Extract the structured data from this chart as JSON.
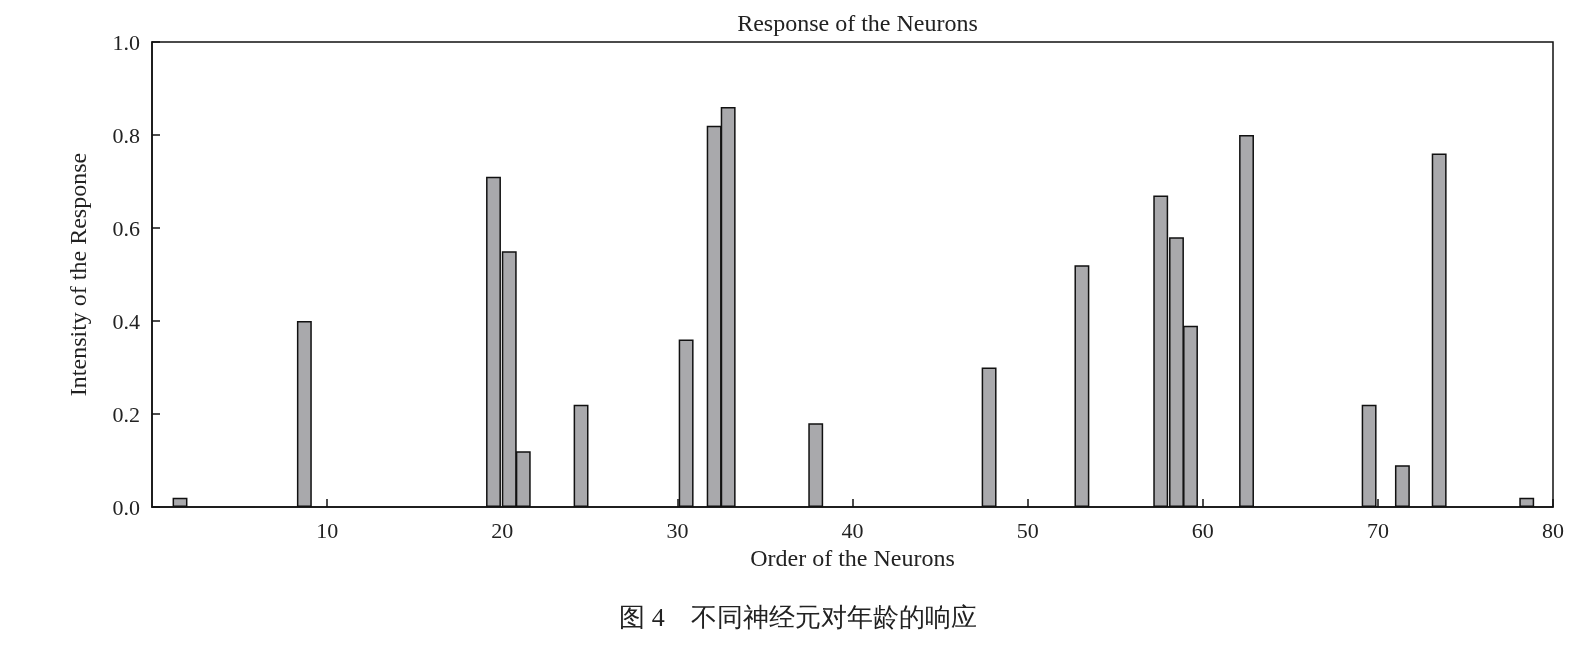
{
  "chart_data": {
    "type": "bar",
    "title": "Response of the Neurons",
    "xlabel": "Order of the Neurons",
    "ylabel": "Intensity of the Response",
    "x": [
      1.6,
      8.7,
      19.5,
      20.4,
      21.2,
      24.5,
      30.5,
      32.1,
      32.9,
      37.9,
      47.8,
      53.1,
      57.6,
      58.5,
      59.3,
      62.5,
      69.5,
      71.4,
      73.5,
      78.5
    ],
    "values": [
      0.02,
      0.4,
      0.71,
      0.55,
      0.12,
      0.22,
      0.36,
      0.82,
      0.86,
      0.18,
      0.3,
      0.52,
      0.67,
      0.58,
      0.39,
      0.8,
      0.22,
      0.09,
      0.76,
      0.02
    ],
    "color": "#a9a9ac",
    "xlim": [
      0,
      80
    ],
    "xticks": [
      10,
      20,
      30,
      40,
      50,
      60,
      70,
      80
    ],
    "ylim": [
      0,
      1
    ],
    "yticks": [
      {
        "value": 0,
        "label": "0.0"
      },
      0.2,
      0.4,
      0.6,
      0.8,
      {
        "value": 1,
        "label": "1.0"
      }
    ],
    "grid": false,
    "annotations": [
      "图 4　不同神经元对年龄的响应"
    ]
  }
}
